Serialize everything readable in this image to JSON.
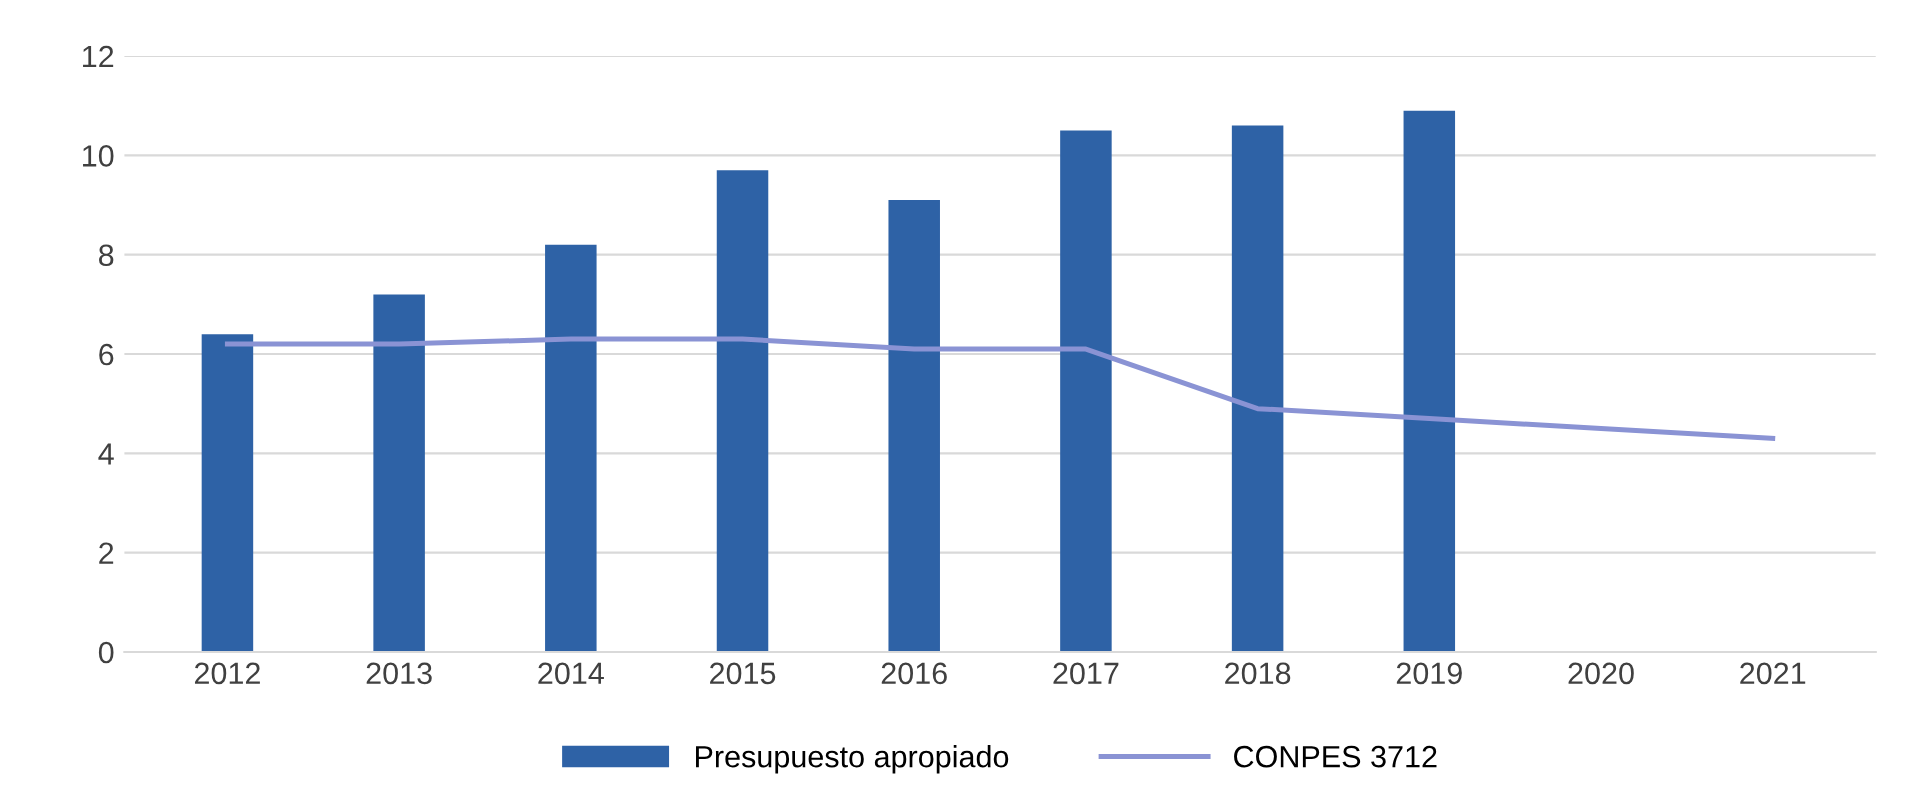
{
  "chart_data": {
    "type": "bar",
    "categories": [
      "2012",
      "2013",
      "2014",
      "2015",
      "2016",
      "2017",
      "2018",
      "2019",
      "2020",
      "2021"
    ],
    "series": [
      {
        "name": "Presupuesto apropiado",
        "color": "#2e62a6",
        "values": [
          6.4,
          7.2,
          8.2,
          9.7,
          9.1,
          10.5,
          10.6,
          10.9,
          null,
          null
        ]
      },
      {
        "name": "CONPES 3712",
        "type": "line",
        "color": "#8a93d4",
        "values": [
          6.2,
          6.2,
          6.3,
          6.3,
          6.1,
          6.1,
          4.9,
          4.7,
          4.5,
          4.3
        ]
      }
    ],
    "ylim": [
      0,
      12
    ],
    "yticks": [
      0,
      2,
      4,
      6,
      8,
      10,
      12
    ],
    "grid": "y",
    "legend": "bottom",
    "marker": "none",
    "line_style": "solid"
  }
}
